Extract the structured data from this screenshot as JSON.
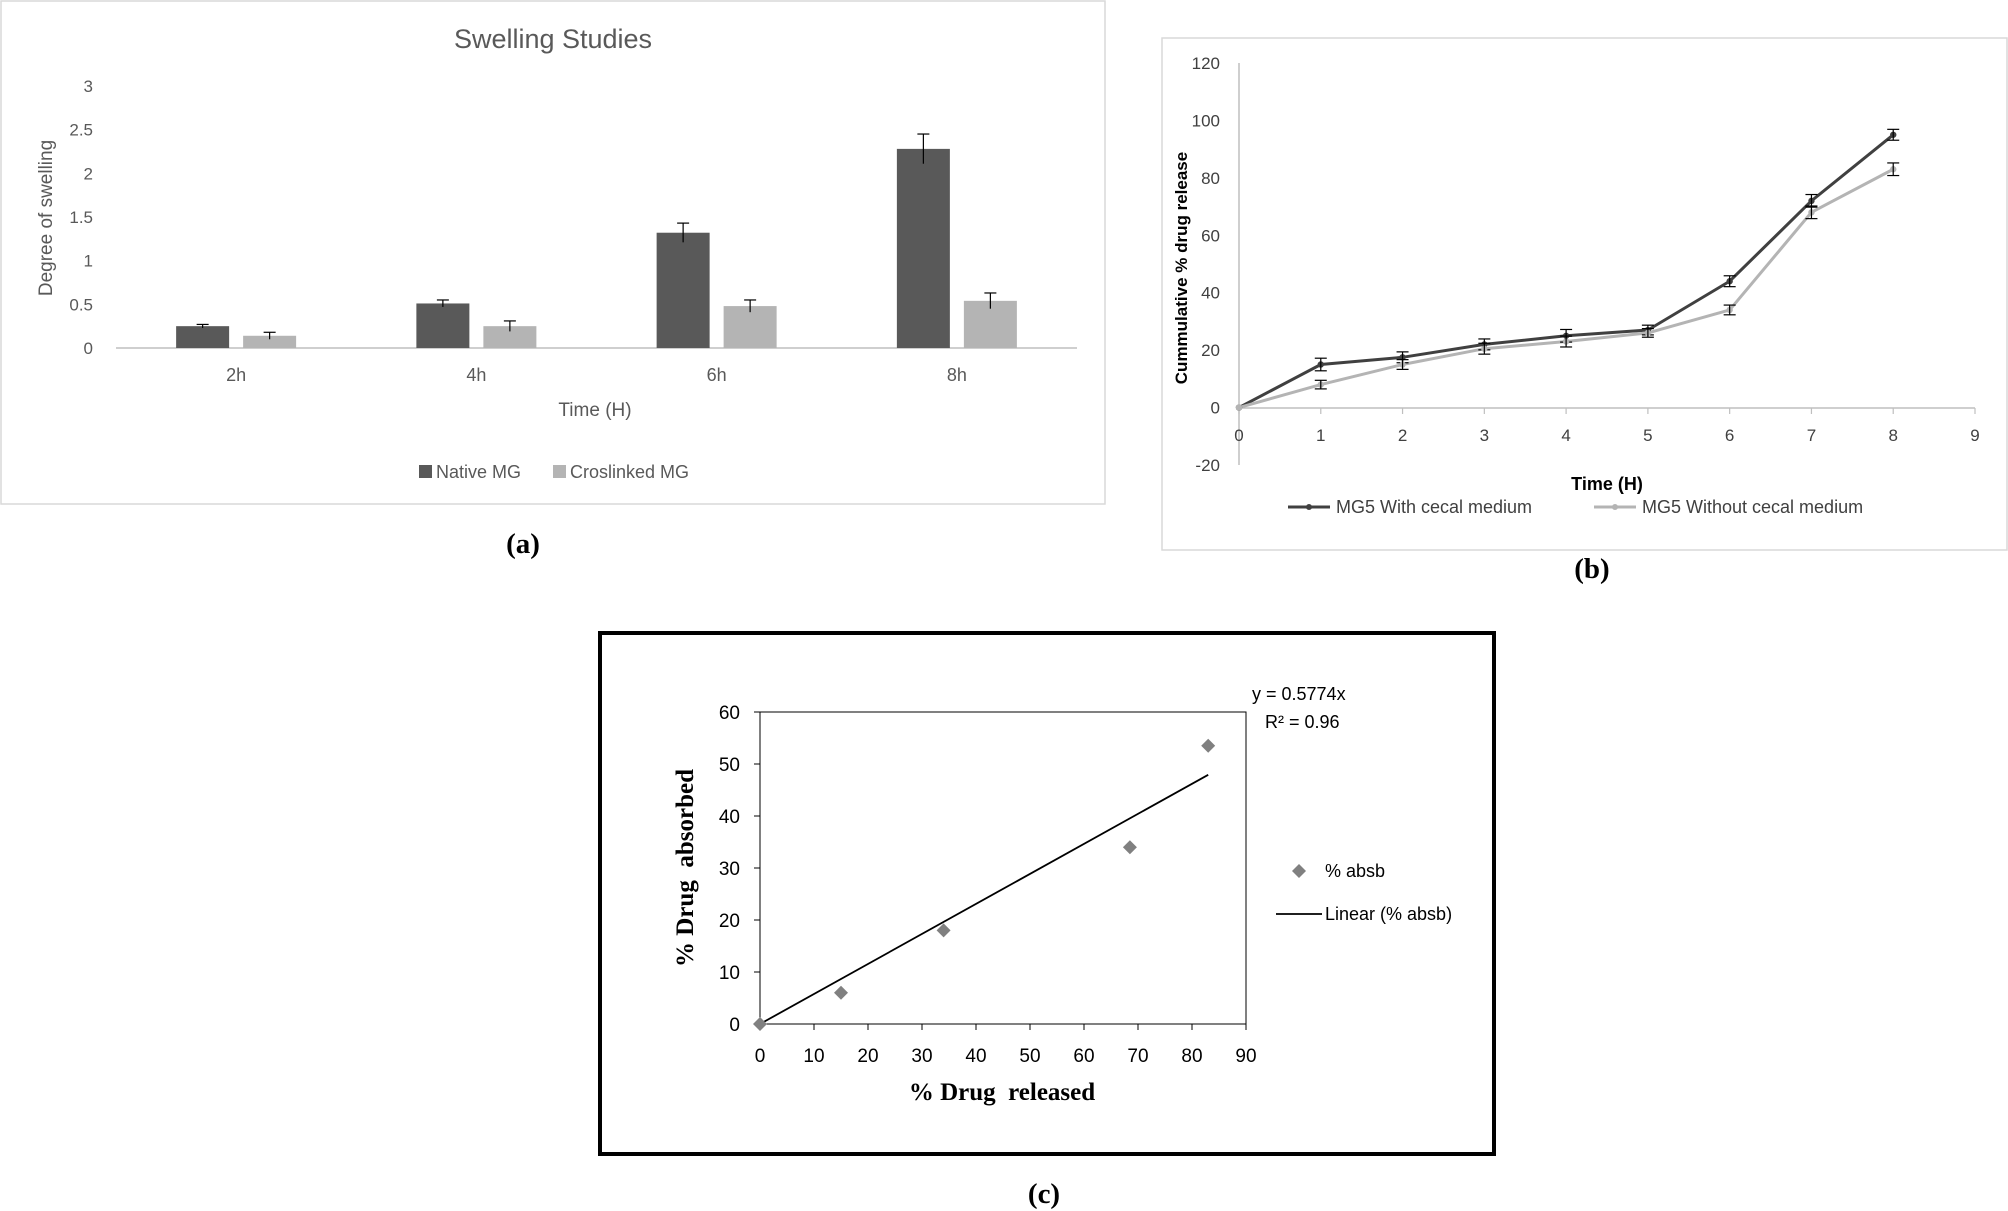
{
  "panels": {
    "a": {
      "label": "(a)"
    },
    "b": {
      "label": "(b)"
    },
    "c": {
      "label": "(c)"
    }
  },
  "colors": {
    "dark": "#595959",
    "light": "#b4b4b4",
    "axis": "#bfbfbf",
    "black": "#000000",
    "marker": "#808080",
    "text": "#595959"
  },
  "chart_data": [
    {
      "id": "a",
      "type": "bar",
      "title": "Swelling Studies",
      "xlabel": "Time (H)",
      "ylabel": "Degree of swelling",
      "categories": [
        "2h",
        "4h",
        "6h",
        "8h"
      ],
      "ylim": [
        0,
        3
      ],
      "yticks": [
        0,
        0.5,
        1,
        1.5,
        2,
        2.5,
        3
      ],
      "ytick_labels": [
        "0",
        "0.5",
        "1",
        "1.5",
        "2",
        "2.5",
        "3"
      ],
      "series": [
        {
          "name": "Native MG",
          "values": [
            0.25,
            0.51,
            1.32,
            2.28
          ],
          "errors": [
            0.02,
            0.04,
            0.11,
            0.17
          ]
        },
        {
          "name": "Croslinked MG",
          "values": [
            0.14,
            0.25,
            0.48,
            0.54
          ],
          "errors": [
            0.04,
            0.06,
            0.07,
            0.09
          ]
        }
      ],
      "legend": "bottom"
    },
    {
      "id": "b",
      "type": "line",
      "xlabel": "Time (H)",
      "ylabel": "Cummulative % drug release",
      "x": [
        0,
        1,
        2,
        3,
        4,
        5,
        6,
        7,
        8
      ],
      "xlim": [
        0,
        9
      ],
      "ylim": [
        -20,
        120
      ],
      "xticks": [
        0,
        1,
        2,
        3,
        4,
        5,
        6,
        7,
        8,
        9
      ],
      "xtick_labels": [
        "0",
        "1",
        "2",
        "3",
        "4",
        "5",
        "6",
        "7",
        "8",
        "9"
      ],
      "yticks": [
        -20,
        0,
        20,
        40,
        60,
        80,
        100,
        120
      ],
      "ytick_labels": [
        "-20",
        "0",
        "20",
        "40",
        "60",
        "80",
        "100",
        "120"
      ],
      "series": [
        {
          "name": "MG5 With cecal medium",
          "values": [
            0,
            15,
            17.5,
            22,
            25,
            27,
            44,
            72,
            95
          ],
          "errors": [
            0,
            1.5,
            1.2,
            1.2,
            1.5,
            1,
            1.2,
            1.5,
            1.2
          ]
        },
        {
          "name": "MG5 Without cecal medium",
          "values": [
            0,
            8,
            15,
            20.5,
            23,
            26,
            34,
            68,
            83
          ],
          "errors": [
            0,
            0.8,
            1,
            1.2,
            1.2,
            0.8,
            1,
            1.5,
            1.5
          ]
        }
      ],
      "legend": "bottom"
    },
    {
      "id": "c",
      "type": "scatter",
      "xlabel": "% Drug  released",
      "ylabel": "% Drug  absorbed",
      "xlim": [
        0,
        90
      ],
      "ylim": [
        0,
        60
      ],
      "xticks": [
        0,
        10,
        20,
        30,
        40,
        50,
        60,
        70,
        80,
        90
      ],
      "xtick_labels": [
        "0",
        "10",
        "20",
        "30",
        "40",
        "50",
        "60",
        "70",
        "80",
        "90"
      ],
      "yticks": [
        0,
        10,
        20,
        30,
        40,
        50,
        60
      ],
      "ytick_labels": [
        "0",
        "10",
        "20",
        "30",
        "40",
        "50",
        "60"
      ],
      "points": {
        "x": [
          0,
          15,
          34,
          68.5,
          83
        ],
        "y": [
          0,
          6,
          18,
          34,
          53.5
        ]
      },
      "trendline": {
        "slope": 0.5774,
        "x_end": 83,
        "equation": "y = 0.5774x",
        "r2": "R² = 0.96"
      },
      "legend_entries": [
        "% absb",
        "Linear (% absb)"
      ],
      "legend": "right"
    }
  ]
}
